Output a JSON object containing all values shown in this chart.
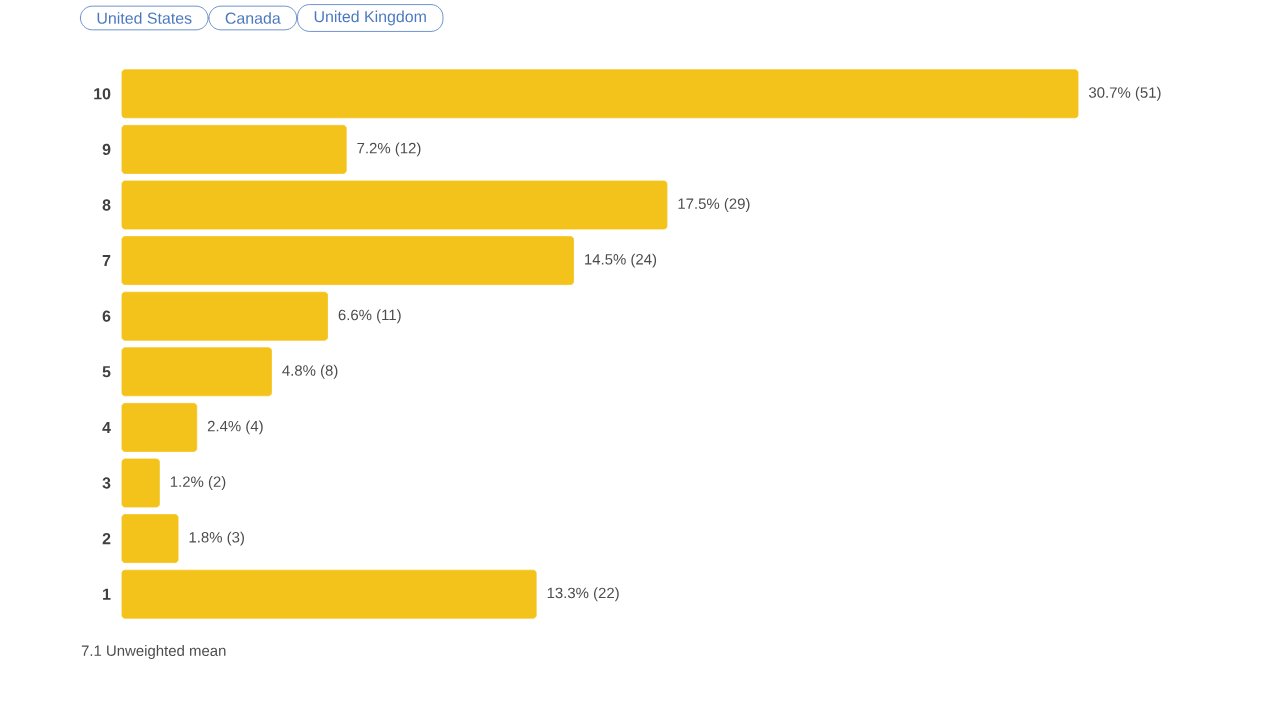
{
  "chart_data": {
    "type": "bar",
    "orientation": "horizontal",
    "tick_labels": "y",
    "categories": [
      "10",
      "9",
      "8",
      "7",
      "6",
      "5",
      "4",
      "3",
      "2",
      "1"
    ],
    "values": [
      30.7,
      7.2,
      17.5,
      14.5,
      6.6,
      4.8,
      2.4,
      1.2,
      1.8,
      13.3
    ],
    "value_labels": [
      "30.7% (51)",
      "7.2% (12)",
      "17.5% (29)",
      "14.5% (24)",
      "6.6% (11)",
      "4.8% (8)",
      "2.4% (4)",
      "1.2% (2)",
      "1.8% (3)",
      "13.3% (22)"
    ],
    "color": "#f4c31b",
    "annotations": [
      "United States",
      "Canada",
      "United Kingdom",
      "7.1 Unweighted mean"
    ]
  }
}
